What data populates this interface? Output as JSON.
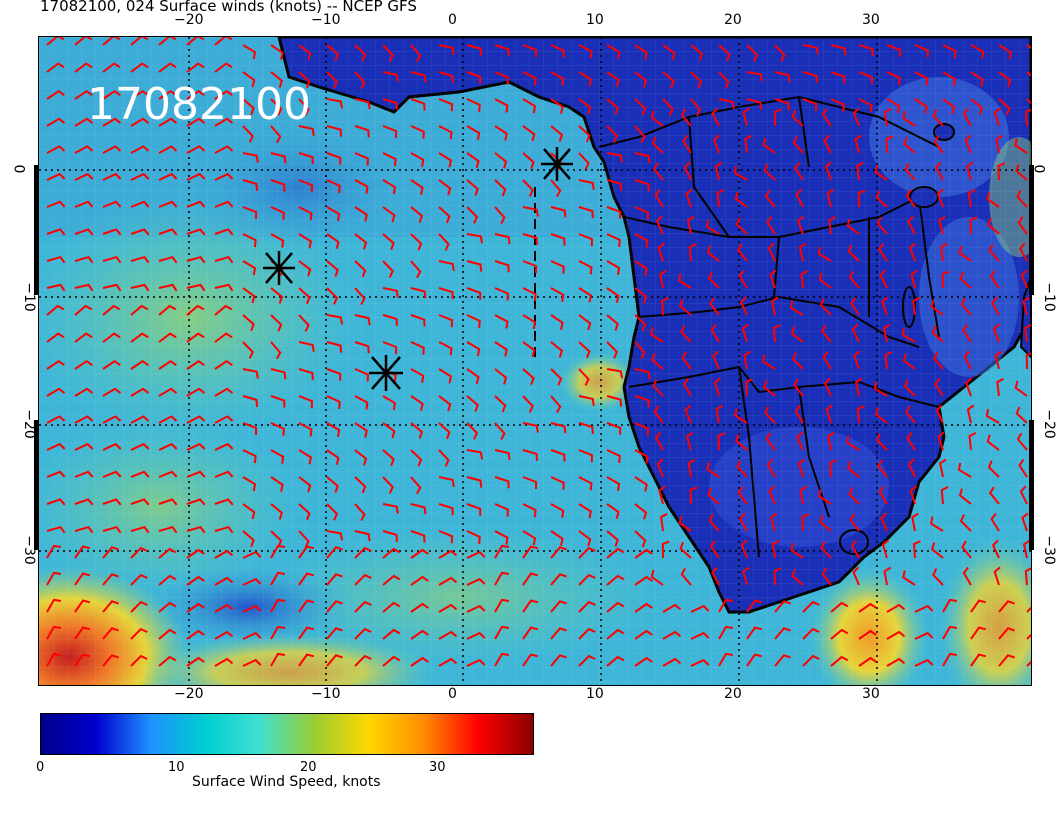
{
  "header": {
    "title": "17082100, 024 Surface winds (knots) -- NCEP GFS"
  },
  "map": {
    "date_stamp": "17082100",
    "x_ticks": [
      "−20",
      "−10",
      "0",
      "10",
      "20",
      "30"
    ],
    "y_ticks": [
      "0",
      "−10",
      "−20",
      "−30"
    ],
    "colors": {
      "ocean_base": "#3fb6d8",
      "land": "#1a2fb8",
      "land_light": "#3d6fdc",
      "calm": "#2a52c6",
      "moderate": "#59cdb9",
      "fresh": "#8fd07a",
      "strong": "#e5d53a",
      "gale": "#ef7b2a",
      "storm": "#c51f1f",
      "barb": "#ff0000",
      "coast": "#000000"
    },
    "markers": [
      "storm-center-1",
      "storm-center-2",
      "storm-center-3"
    ]
  },
  "colorbar": {
    "ticks": [
      "0",
      "10",
      "20",
      "30"
    ],
    "title": "Surface Wind Speed, knots",
    "stops": [
      "#00008b",
      "#0000cd",
      "#1e90ff",
      "#00ced1",
      "#40e0d0",
      "#9acd32",
      "#ffd700",
      "#ff8c00",
      "#ff0000",
      "#8b0000"
    ]
  }
}
